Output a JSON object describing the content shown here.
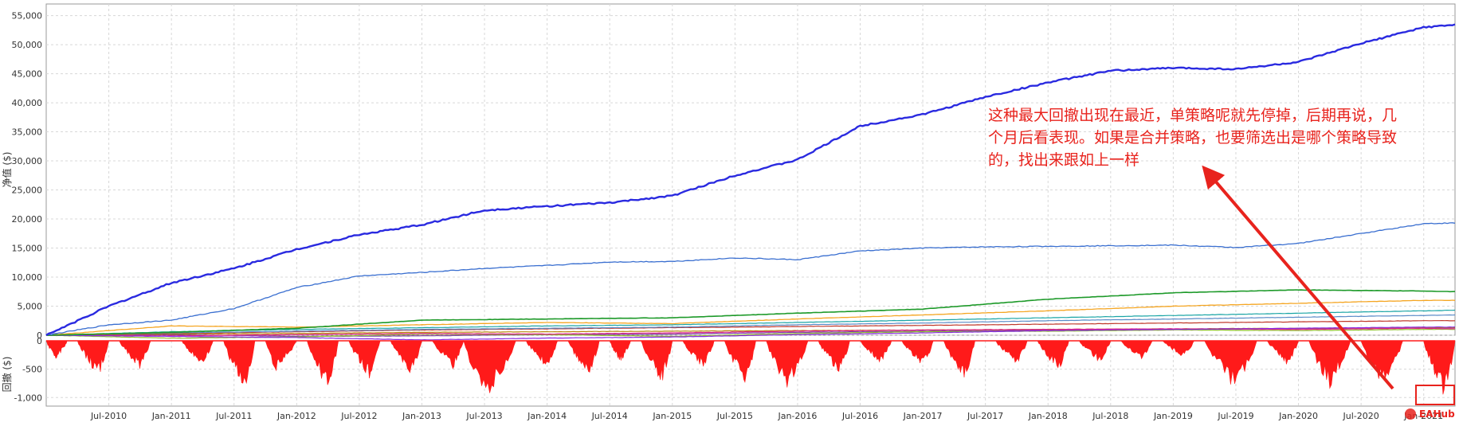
{
  "chart_data": [
    {
      "type": "line",
      "ylabel": "净值 ($)",
      "ylim": [
        0,
        57000
      ],
      "y_ticks": [
        "0",
        "5,000",
        "10,000",
        "15,000",
        "20,000",
        "25,000",
        "30,000",
        "35,000",
        "40,000",
        "45,000",
        "50,000",
        "55,000"
      ],
      "y_tick_values": [
        0,
        5000,
        10000,
        15000,
        20000,
        25000,
        30000,
        35000,
        40000,
        45000,
        50000,
        55000
      ],
      "x_range": [
        "2010-01",
        "2021-04"
      ],
      "x_ticks": [
        "Jul-2010",
        "Jan-2011",
        "Jul-2011",
        "Jan-2012",
        "Jul-2012",
        "Jan-2013",
        "Jul-2013",
        "Jan-2014",
        "Jul-2014",
        "Jan-2015",
        "Jul-2015",
        "Jan-2016",
        "Jul-2016",
        "Jan-2017",
        "Jul-2017",
        "Jan-2018",
        "Jul-2018",
        "Jan-2019",
        "Jul-2019",
        "Jan-2020",
        "Jul-2020",
        "Jan-2021"
      ],
      "grid": true,
      "series": [
        {
          "color": "#2a2ae0",
          "width": 2.4,
          "x": [
            "2010-01",
            "2010-07",
            "2011-01",
            "2011-07",
            "2012-01",
            "2012-07",
            "2013-01",
            "2013-07",
            "2014-01",
            "2014-07",
            "2015-01",
            "2015-07",
            "2016-01",
            "2016-07",
            "2017-01",
            "2017-07",
            "2018-01",
            "2018-07",
            "2019-01",
            "2019-07",
            "2020-01",
            "2020-07",
            "2021-01",
            "2021-04"
          ],
          "values": [
            0,
            5000,
            9000,
            11500,
            14800,
            17300,
            19000,
            21500,
            22200,
            22800,
            24000,
            27500,
            30200,
            36000,
            38000,
            41000,
            43500,
            45500,
            46000,
            45800,
            47000,
            50200,
            53000,
            53400
          ]
        },
        {
          "color": "#3a6fd0",
          "width": 1.3,
          "x": [
            "2010-01",
            "2010-07",
            "2011-01",
            "2011-07",
            "2012-01",
            "2012-07",
            "2013-01",
            "2013-07",
            "2014-01",
            "2014-07",
            "2015-01",
            "2015-07",
            "2016-01",
            "2016-07",
            "2017-01",
            "2017-07",
            "2018-01",
            "2018-07",
            "2019-01",
            "2019-07",
            "2020-01",
            "2020-07",
            "2021-01",
            "2021-04"
          ],
          "values": [
            0,
            1800,
            2600,
            4600,
            8200,
            10200,
            10800,
            11500,
            12000,
            12600,
            12700,
            13300,
            13000,
            14500,
            15000,
            15200,
            15300,
            15400,
            15500,
            15100,
            15800,
            17500,
            19200,
            19300
          ]
        },
        {
          "color": "#1e9a2a",
          "width": 1.6,
          "x": [
            "2010-01",
            "2011-01",
            "2012-01",
            "2013-01",
            "2014-01",
            "2015-01",
            "2016-01",
            "2017-01",
            "2018-01",
            "2019-01",
            "2020-01",
            "2021-01",
            "2021-04"
          ],
          "values": [
            0,
            500,
            1200,
            2600,
            2800,
            3000,
            3800,
            4500,
            6200,
            7300,
            7800,
            7600,
            7500
          ]
        },
        {
          "color": "#f5a623",
          "width": 1.3,
          "x": [
            "2010-01",
            "2011-01",
            "2012-01",
            "2013-01",
            "2014-01",
            "2015-01",
            "2016-01",
            "2017-01",
            "2018-01",
            "2019-01",
            "2020-01",
            "2021-01",
            "2021-04"
          ],
          "values": [
            0,
            1600,
            1400,
            1800,
            2200,
            2000,
            2800,
            3500,
            4200,
            5000,
            5500,
            6000,
            6000
          ]
        },
        {
          "color": "#1aa5a5",
          "width": 1.2,
          "x": [
            "2010-01",
            "2011-01",
            "2012-01",
            "2013-01",
            "2014-01",
            "2015-01",
            "2016-01",
            "2017-01",
            "2018-01",
            "2019-01",
            "2020-01",
            "2021-01",
            "2021-04"
          ],
          "values": [
            0,
            600,
            1000,
            1300,
            1600,
            1800,
            2200,
            2600,
            3000,
            3400,
            3800,
            4200,
            4300
          ]
        },
        {
          "color": "#5b8cc8",
          "width": 1.2,
          "x": [
            "2010-01",
            "2011-01",
            "2012-01",
            "2013-01",
            "2014-01",
            "2015-01",
            "2016-01",
            "2017-01",
            "2018-01",
            "2019-01",
            "2020-01",
            "2021-01",
            "2021-04"
          ],
          "values": [
            0,
            400,
            700,
            1000,
            1200,
            1400,
            1800,
            2100,
            2500,
            2800,
            3100,
            3400,
            3500
          ]
        },
        {
          "color": "#8a2be2",
          "width": 1.2,
          "x": [
            "2010-01",
            "2011-01",
            "2012-01",
            "2013-01",
            "2014-01",
            "2015-01",
            "2016-01",
            "2017-01",
            "2018-01",
            "2019-01",
            "2020-01",
            "2021-01",
            "2021-04"
          ],
          "values": [
            0,
            -200,
            -400,
            -800,
            -500,
            -300,
            100,
            400,
            800,
            1000,
            1200,
            1400,
            1400
          ]
        },
        {
          "color": "#c0392b",
          "width": 1.2,
          "x": [
            "2010-01",
            "2011-01",
            "2012-01",
            "2013-01",
            "2014-01",
            "2015-01",
            "2016-01",
            "2017-01",
            "2018-01",
            "2019-01",
            "2020-01",
            "2021-01",
            "2021-04"
          ],
          "values": [
            0,
            300,
            600,
            900,
            1100,
            1300,
            1500,
            1700,
            1900,
            2100,
            2300,
            2500,
            2500
          ]
        },
        {
          "color": "#e0218a",
          "width": 1.2,
          "x": [
            "2010-01",
            "2011-01",
            "2012-01",
            "2013-01",
            "2014-01",
            "2015-01",
            "2016-01",
            "2017-01",
            "2018-01",
            "2019-01",
            "2020-01",
            "2021-01",
            "2021-04"
          ],
          "values": [
            0,
            -100,
            100,
            300,
            200,
            400,
            700,
            900,
            1000,
            1100,
            1000,
            1200,
            1100
          ]
        },
        {
          "color": "#8fbf2a",
          "width": 1.2,
          "x": [
            "2010-01",
            "2011-01",
            "2012-01",
            "2013-01",
            "2014-01",
            "2015-01",
            "2016-01",
            "2017-01",
            "2018-01",
            "2019-01",
            "2020-01",
            "2021-01",
            "2021-04"
          ],
          "values": [
            0,
            -500,
            -300,
            200,
            100,
            -200,
            300,
            600,
            700,
            900,
            800,
            1000,
            1000
          ]
        },
        {
          "color": "#b8860b",
          "width": 1.2,
          "x": [
            "2010-01",
            "2011-01",
            "2012-01",
            "2013-01",
            "2014-01",
            "2015-01",
            "2016-01",
            "2017-01",
            "2018-01",
            "2019-01",
            "2020-01",
            "2021-01",
            "2021-04"
          ],
          "values": [
            0,
            200,
            300,
            500,
            600,
            700,
            800,
            900,
            1000,
            1100,
            1200,
            1300,
            1300
          ]
        },
        {
          "color": "#7b3fa0",
          "width": 1.2,
          "x": [
            "2010-01",
            "2011-01",
            "2012-01",
            "2013-01",
            "2014-01",
            "2015-01",
            "2016-01",
            "2017-01",
            "2018-01",
            "2019-01",
            "2020-01",
            "2021-01",
            "2021-04"
          ],
          "values": [
            0,
            100,
            -200,
            -100,
            100,
            200,
            500,
            700,
            900,
            1000,
            1100,
            1300,
            1300
          ]
        }
      ]
    },
    {
      "type": "area",
      "ylabel": "回撤 ($)",
      "ylim": [
        -1150,
        0
      ],
      "y_ticks": [
        "0",
        "-500",
        "-1,000"
      ],
      "y_tick_values": [
        0,
        -500,
        -1000
      ],
      "x_range": [
        "2010-01",
        "2021-04"
      ],
      "x_ticks": [
        "Jul-2010",
        "Jan-2011",
        "Jul-2011",
        "Jan-2012",
        "Jul-2012",
        "Jan-2013",
        "Jul-2013",
        "Jan-2014",
        "Jul-2014",
        "Jan-2015",
        "Jul-2015",
        "Jan-2016",
        "Jul-2016",
        "Jan-2017",
        "Jul-2017",
        "Jan-2018",
        "Jul-2018",
        "Jan-2019",
        "Jul-2019",
        "Jan-2020",
        "Jul-2020",
        "Jan-2021"
      ],
      "grid": true,
      "color": "#ff1a1a",
      "drawdown_episodes": [
        {
          "start": "2010-01",
          "trough": "2010-02",
          "end": "2010-03",
          "depth": -350
        },
        {
          "start": "2010-04",
          "trough": "2010-06",
          "end": "2010-07",
          "depth": -650
        },
        {
          "start": "2010-08",
          "trough": "2010-10",
          "end": "2010-11",
          "depth": -500
        },
        {
          "start": "2011-02",
          "trough": "2011-04",
          "end": "2011-05",
          "depth": -450
        },
        {
          "start": "2011-06",
          "trough": "2011-08",
          "end": "2011-09",
          "depth": -950
        },
        {
          "start": "2011-10",
          "trough": "2011-11",
          "end": "2012-01",
          "depth": -550
        },
        {
          "start": "2012-02",
          "trough": "2012-04",
          "end": "2012-05",
          "depth": -900
        },
        {
          "start": "2012-06",
          "trough": "2012-08",
          "end": "2012-09",
          "depth": -700
        },
        {
          "start": "2012-10",
          "trough": "2012-12",
          "end": "2013-01",
          "depth": -600
        },
        {
          "start": "2013-02",
          "trough": "2013-04",
          "end": "2013-05",
          "depth": -500
        },
        {
          "start": "2013-05",
          "trough": "2013-07",
          "end": "2013-10",
          "depth": -1100
        },
        {
          "start": "2013-11",
          "trough": "2014-01",
          "end": "2014-02",
          "depth": -500
        },
        {
          "start": "2014-03",
          "trough": "2014-05",
          "end": "2014-06",
          "depth": -650
        },
        {
          "start": "2014-07",
          "trough": "2014-08",
          "end": "2014-09",
          "depth": -400
        },
        {
          "start": "2014-10",
          "trough": "2014-12",
          "end": "2015-01",
          "depth": -750
        },
        {
          "start": "2015-02",
          "trough": "2015-04",
          "end": "2015-05",
          "depth": -500
        },
        {
          "start": "2015-06",
          "trough": "2015-08",
          "end": "2015-09",
          "depth": -800
        },
        {
          "start": "2015-10",
          "trough": "2015-12",
          "end": "2016-02",
          "depth": -900
        },
        {
          "start": "2016-03",
          "trough": "2016-05",
          "end": "2016-06",
          "depth": -600
        },
        {
          "start": "2016-07",
          "trough": "2016-09",
          "end": "2016-10",
          "depth": -400
        },
        {
          "start": "2016-11",
          "trough": "2017-01",
          "end": "2017-02",
          "depth": -500
        },
        {
          "start": "2017-03",
          "trough": "2017-05",
          "end": "2017-06",
          "depth": -700
        },
        {
          "start": "2017-08",
          "trough": "2017-10",
          "end": "2017-11",
          "depth": -450
        },
        {
          "start": "2017-12",
          "trough": "2018-02",
          "end": "2018-03",
          "depth": -550
        },
        {
          "start": "2018-04",
          "trough": "2018-06",
          "end": "2018-07",
          "depth": -400
        },
        {
          "start": "2018-08",
          "trough": "2018-10",
          "end": "2018-11",
          "depth": -350
        },
        {
          "start": "2018-12",
          "trough": "2019-02",
          "end": "2019-03",
          "depth": -300
        },
        {
          "start": "2019-04",
          "trough": "2019-07",
          "end": "2019-09",
          "depth": -900
        },
        {
          "start": "2019-10",
          "trough": "2019-12",
          "end": "2020-01",
          "depth": -450
        },
        {
          "start": "2020-02",
          "trough": "2020-04",
          "end": "2020-06",
          "depth": -850
        },
        {
          "start": "2020-07",
          "trough": "2020-09",
          "end": "2020-11",
          "depth": -850
        },
        {
          "start": "2021-01",
          "trough": "2021-03",
          "end": "2021-04",
          "depth": -1050
        }
      ]
    }
  ],
  "annotation": {
    "lines": [
      "这种最大回撤出现在最近，单策略呢就先停掉，后期再说，几",
      "个月后看表现。如果是合并策略，也要筛选出是哪个策略导致",
      "的，找出来跟如上一样"
    ],
    "color": "#e8231d"
  },
  "watermark": {
    "text": "EAHub"
  }
}
